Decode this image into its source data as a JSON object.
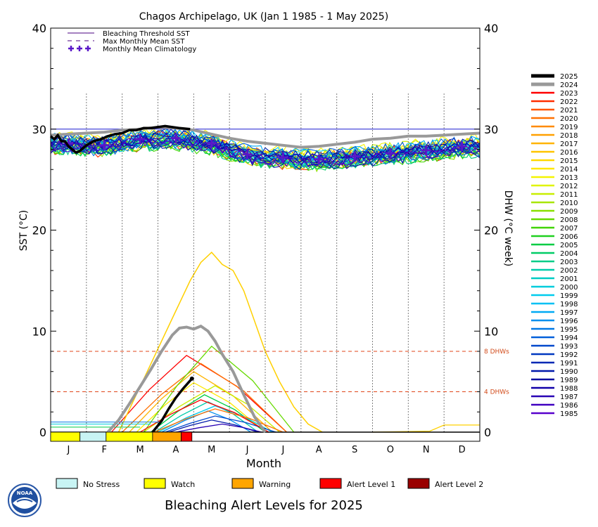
{
  "chart_data": {
    "type": "line",
    "title": "Chagos Archipelago, UK      (Jan 1 1985 - 1 May 2025)",
    "xlabel": "Month",
    "ylabel_left": "SST (°C)",
    "ylabel_right": "DHW (°C week)",
    "ylim": [
      0,
      40
    ],
    "y_ticks": [
      "0",
      "10",
      "20",
      "30",
      "40"
    ],
    "months": [
      "J",
      "F",
      "M",
      "A",
      "M",
      "J",
      "J",
      "A",
      "S",
      "O",
      "N",
      "D"
    ],
    "threshold_sst": 30,
    "dhw_levels": [
      {
        "value": 8,
        "label": "8 DHWs"
      },
      {
        "value": 4,
        "label": "4 DHWs"
      }
    ],
    "legend_top": [
      {
        "label": "Bleaching Threshold SST",
        "style": "solid",
        "color": "#4b0082"
      },
      {
        "label": "Max Monthly Mean SST",
        "style": "dashed",
        "color": "#4b0082"
      },
      {
        "label": "Monthly Mean Climatology",
        "style": "cross",
        "color": "#5a18c8"
      }
    ],
    "climatology": {
      "months": [
        0.5,
        1.5,
        2.5,
        3.5,
        4.5,
        5.5,
        6.5,
        7.5,
        8.5,
        9.5,
        10.5,
        11.5
      ],
      "values": [
        28.6,
        28.4,
        29.0,
        29.1,
        28.6,
        27.5,
        27.2,
        27.0,
        27.3,
        27.6,
        27.9,
        28.3
      ]
    },
    "series_2025_sst": {
      "month": [
        0,
        0.1,
        0.2,
        0.3,
        0.4,
        0.5,
        0.6,
        0.7,
        0.8,
        0.9,
        1.0,
        1.2,
        1.4,
        1.6,
        1.8,
        2.0,
        2.2,
        2.4,
        2.6,
        2.8,
        3.0,
        3.2,
        3.4,
        3.6,
        3.9
      ],
      "values": [
        29.3,
        29.0,
        29.4,
        28.8,
        28.8,
        28.3,
        28.0,
        27.7,
        27.8,
        28.1,
        28.4,
        28.8,
        29.0,
        29.3,
        29.5,
        29.6,
        29.9,
        29.9,
        30.1,
        30.1,
        30.2,
        30.3,
        30.2,
        30.1,
        30.0
      ]
    },
    "series_2024_sst": {
      "month": [
        0,
        0.5,
        1.0,
        1.5,
        2.0,
        2.5,
        3.0,
        3.5,
        4.0,
        4.5,
        5.0,
        5.5,
        6.0,
        6.5,
        7.0,
        7.5,
        8.0,
        8.5,
        9.0,
        9.5,
        10.0,
        10.5,
        11.0,
        11.5,
        12.0
      ],
      "values": [
        29.4,
        29.5,
        29.6,
        29.7,
        29.9,
        30.0,
        30.2,
        30.1,
        29.9,
        29.5,
        29.1,
        28.8,
        28.6,
        28.4,
        28.2,
        28.3,
        28.5,
        28.7,
        29.0,
        29.1,
        29.3,
        29.3,
        29.4,
        29.5,
        29.6
      ]
    },
    "series_2025_dhw": {
      "month": [
        2.85,
        3.1,
        3.3,
        3.5,
        3.7,
        3.95
      ],
      "values": [
        0,
        1.1,
        2.3,
        3.4,
        4.3,
        5.3
      ]
    },
    "series_2024_dhw": {
      "month": [
        1.6,
        1.9,
        2.2,
        2.5,
        2.8,
        3.1,
        3.4,
        3.6,
        3.8,
        4.0,
        4.2,
        4.4,
        4.6,
        4.8,
        5.1,
        5.4,
        5.7,
        6.0
      ],
      "values": [
        0,
        1.2,
        2.8,
        4.5,
        6.2,
        8.0,
        9.6,
        10.3,
        10.4,
        10.2,
        10.5,
        10.0,
        9.0,
        7.7,
        6.0,
        3.7,
        1.5,
        0
      ]
    },
    "series_peak_dhw": {
      "month": [
        1.9,
        2.3,
        2.7,
        3.1,
        3.5,
        3.9,
        4.2,
        4.5,
        4.8,
        5.1,
        5.4,
        5.7,
        6.0,
        6.4,
        6.8,
        7.2,
        7.6
      ],
      "values": [
        0,
        3.0,
        6.0,
        9.0,
        12.0,
        15.0,
        16.8,
        17.8,
        16.6,
        16.0,
        14.0,
        11.0,
        8.0,
        5.0,
        2.5,
        0.8,
        0
      ]
    },
    "years": [
      "2025",
      "2024",
      "2023",
      "2022",
      "2021",
      "2020",
      "2019",
      "2018",
      "2017",
      "2016",
      "2015",
      "2014",
      "2013",
      "2012",
      "2011",
      "2010",
      "2009",
      "2008",
      "2007",
      "2006",
      "2005",
      "2004",
      "2003",
      "2002",
      "2001",
      "2000",
      "1999",
      "1998",
      "1997",
      "1996",
      "1995",
      "1994",
      "1993",
      "1992",
      "1991",
      "1990",
      "1989",
      "1988",
      "1987",
      "1986",
      "1985"
    ],
    "year_colors": [
      "#000000",
      "#999999",
      "#ff0000",
      "#ff2e00",
      "#ff5500",
      "#ff7000",
      "#ff8a00",
      "#ffa000",
      "#ffb400",
      "#ffc400",
      "#ffd800",
      "#ffe800",
      "#f4f400",
      "#e0f400",
      "#c8ee00",
      "#a8e600",
      "#88e000",
      "#66da00",
      "#40d400",
      "#20d020",
      "#00cc44",
      "#00cc66",
      "#00cc88",
      "#00ccaa",
      "#00ccc4",
      "#00ccdc",
      "#00ccee",
      "#00c0f4",
      "#00aaf4",
      "#0090ee",
      "#0078e4",
      "#0060da",
      "#0048cc",
      "#0038c0",
      "#0028b4",
      "#0018aa",
      "#0008a0",
      "#1000a8",
      "#2800b4",
      "#4000c0",
      "#5800cc"
    ],
    "alert_bar": {
      "segments": [
        {
          "start": 0.0,
          "end": 0.82,
          "level": "Watch"
        },
        {
          "start": 0.82,
          "end": 1.55,
          "level": "No Stress"
        },
        {
          "start": 1.55,
          "end": 2.85,
          "level": "Watch"
        },
        {
          "start": 2.85,
          "end": 3.65,
          "level": "Warning"
        },
        {
          "start": 3.65,
          "end": 3.95,
          "level": "Alert Level 1"
        }
      ]
    },
    "alert_legend": [
      {
        "label": "No Stress",
        "color": "#c8f4f4"
      },
      {
        "label": "Watch",
        "color": "#ffff00"
      },
      {
        "label": "Warning",
        "color": "#ffa500"
      },
      {
        "label": "Alert Level 1",
        "color": "#ff0000"
      },
      {
        "label": "Alert Level 2",
        "color": "#990000"
      }
    ],
    "footer_title": "Bleaching Alert Levels for 2025",
    "logo_text": "NOAA"
  }
}
